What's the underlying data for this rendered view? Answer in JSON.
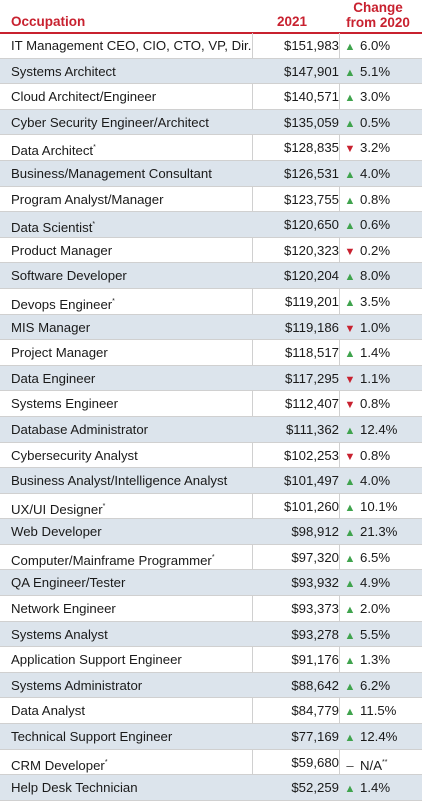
{
  "header": {
    "occupation": "Occupation",
    "year": "2021",
    "change_line1": "Change",
    "change_line2": "from 2020"
  },
  "colors": {
    "header_red": "#c8212f",
    "up_green": "#3fa34d",
    "down_red": "#c8212f",
    "row_shade": "#dce4ec"
  },
  "rows": [
    {
      "occupation": "IT Management CEO, CIO, CTO, VP, Dir.",
      "salary": "$151,983",
      "dir": "up",
      "change": "6.0%"
    },
    {
      "occupation": "Systems Architect",
      "salary": "$147,901",
      "dir": "up",
      "change": "5.1%"
    },
    {
      "occupation": "Cloud Architect/Engineer",
      "salary": "$140,571",
      "dir": "up",
      "change": "3.0%"
    },
    {
      "occupation": "Cyber Security Engineer/Architect",
      "salary": "$135,059",
      "dir": "up",
      "change": "0.5%"
    },
    {
      "occupation": "Data Architect",
      "note": "*",
      "salary": "$128,835",
      "dir": "down",
      "change": "3.2%"
    },
    {
      "occupation": "Business/Management Consultant",
      "salary": "$126,531",
      "dir": "up",
      "change": "4.0%"
    },
    {
      "occupation": "Program Analyst/Manager",
      "salary": "$123,755",
      "dir": "up",
      "change": "0.8%"
    },
    {
      "occupation": "Data Scientist",
      "note": "*",
      "salary": "$120,650",
      "dir": "up",
      "change": "0.6%"
    },
    {
      "occupation": "Product Manager",
      "salary": "$120,323",
      "dir": "down",
      "change": "0.2%"
    },
    {
      "occupation": "Software Developer",
      "salary": "$120,204",
      "dir": "up",
      "change": "8.0%"
    },
    {
      "occupation": "Devops Engineer",
      "note": "*",
      "salary": "$119,201",
      "dir": "up",
      "change": "3.5%"
    },
    {
      "occupation": "MIS Manager",
      "salary": "$119,186",
      "dir": "down",
      "change": "1.0%"
    },
    {
      "occupation": "Project Manager",
      "salary": "$118,517",
      "dir": "up",
      "change": "1.4%"
    },
    {
      "occupation": "Data Engineer",
      "salary": "$117,295",
      "dir": "down",
      "change": "1.1%"
    },
    {
      "occupation": "Systems Engineer",
      "salary": "$112,407",
      "dir": "down",
      "change": "0.8%"
    },
    {
      "occupation": "Database Administrator",
      "salary": "$111,362",
      "dir": "up",
      "change": "12.4%"
    },
    {
      "occupation": "Cybersecurity Analyst",
      "salary": "$102,253",
      "dir": "down",
      "change": "0.8%"
    },
    {
      "occupation": "Business Analyst/Intelligence Analyst",
      "salary": "$101,497",
      "dir": "up",
      "change": "4.0%"
    },
    {
      "occupation": "UX/UI Designer",
      "note": "*",
      "salary": "$101,260",
      "dir": "up",
      "change": "10.1%"
    },
    {
      "occupation": "Web Developer",
      "salary": "$98,912",
      "dir": "up",
      "change": "21.3%"
    },
    {
      "occupation": "Computer/Mainframe Programmer",
      "note": "*",
      "salary": "$97,320",
      "dir": "up",
      "change": "6.5%"
    },
    {
      "occupation": "QA Engineer/Tester",
      "salary": "$93,932",
      "dir": "up",
      "change": "4.9%"
    },
    {
      "occupation": "Network Engineer",
      "salary": "$93,373",
      "dir": "up",
      "change": "2.0%"
    },
    {
      "occupation": "Systems Analyst",
      "salary": "$93,278",
      "dir": "up",
      "change": "5.5%"
    },
    {
      "occupation": "Application Support Engineer",
      "salary": "$91,176",
      "dir": "up",
      "change": "1.3%"
    },
    {
      "occupation": "Systems Administrator",
      "salary": "$88,642",
      "dir": "up",
      "change": "6.2%"
    },
    {
      "occupation": "Data Analyst",
      "salary": "$84,779",
      "dir": "up",
      "change": "11.5%"
    },
    {
      "occupation": "Technical Support Engineer",
      "salary": "$77,169",
      "dir": "up",
      "change": "12.4%"
    },
    {
      "occupation": "CRM Developer",
      "note": "*",
      "salary": "$59,680",
      "dir": "none",
      "change": "N/A",
      "change_note": "**"
    },
    {
      "occupation": "Help Desk Technician",
      "salary": "$52,259",
      "dir": "up",
      "change": "1.4%"
    }
  ]
}
